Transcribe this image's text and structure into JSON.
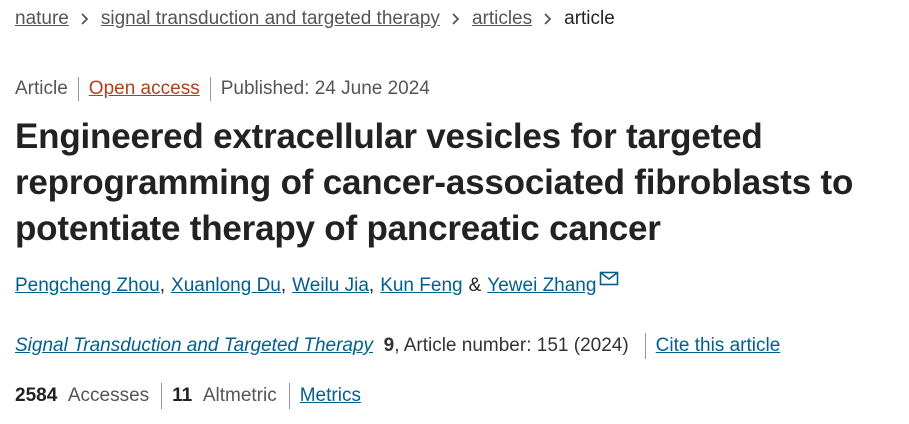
{
  "breadcrumbs": [
    "nature",
    "signal transduction and targeted therapy",
    "articles",
    "article"
  ],
  "meta": {
    "type": "Article",
    "access": "Open access",
    "published": "Published: 24 June 2024"
  },
  "title": "Engineered extracellular vesicles for targeted reprogramming of cancer-associated fibroblasts to potentiate therapy of pancreatic cancer",
  "authors": [
    "Pengcheng Zhou",
    "Xuanlong Du",
    "Weilu Jia",
    "Kun Feng",
    "Yewei Zhang"
  ],
  "author_separators": [
    ",",
    ",",
    ",",
    "&"
  ],
  "citation": {
    "journal": "Signal Transduction and Targeted Therapy",
    "volume": "9",
    "details": ", Article number: 151 (2024)",
    "cite": "Cite this article"
  },
  "metrics": {
    "accesses": 2584,
    "accesses_label": "Accesses",
    "altmetric": 11,
    "altmetric_label": "Altmetric",
    "link": "Metrics"
  }
}
